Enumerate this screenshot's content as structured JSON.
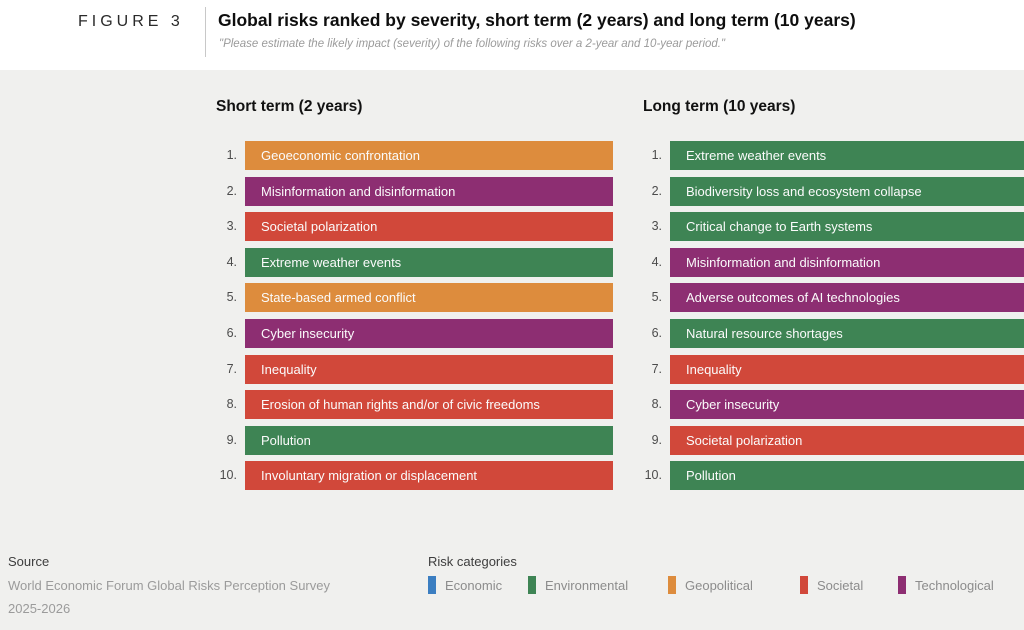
{
  "figure": {
    "label": "FIGURE 3",
    "title": "Global risks ranked by severity, short term (2 years) and long term (10 years)",
    "subtitle": "\"Please estimate the likely impact (severity) of the following risks over a 2-year and 10-year period.\""
  },
  "colors": {
    "Economic": "#3b7ec1",
    "Environmental": "#3e8454",
    "Geopolitical": "#dd8c3d",
    "Societal": "#d1483a",
    "Technological": "#8d2e72"
  },
  "chart_data": {
    "type": "table",
    "description": "Two ranked top-10 lists of global risks by severity; bar color encodes risk category",
    "columns": [
      {
        "title": "Short term (2 years)",
        "items": [
          {
            "rank": "1.",
            "label": "Geoeconomic confrontation",
            "category": "Geopolitical"
          },
          {
            "rank": "2.",
            "label": "Misinformation and disinformation",
            "category": "Technological"
          },
          {
            "rank": "3.",
            "label": "Societal polarization",
            "category": "Societal"
          },
          {
            "rank": "4.",
            "label": "Extreme weather events",
            "category": "Environmental"
          },
          {
            "rank": "5.",
            "label": "State-based armed conflict",
            "category": "Geopolitical"
          },
          {
            "rank": "6.",
            "label": "Cyber insecurity",
            "category": "Technological"
          },
          {
            "rank": "7.",
            "label": "Inequality",
            "category": "Societal"
          },
          {
            "rank": "8.",
            "label": "Erosion of human rights and/or of civic freedoms",
            "category": "Societal"
          },
          {
            "rank": "9.",
            "label": "Pollution",
            "category": "Environmental"
          },
          {
            "rank": "10.",
            "label": "Involuntary migration or displacement",
            "category": "Societal"
          }
        ]
      },
      {
        "title": "Long term (10 years)",
        "items": [
          {
            "rank": "1.",
            "label": "Extreme weather events",
            "category": "Environmental"
          },
          {
            "rank": "2.",
            "label": "Biodiversity loss and ecosystem collapse",
            "category": "Environmental"
          },
          {
            "rank": "3.",
            "label": "Critical change to Earth systems",
            "category": "Environmental"
          },
          {
            "rank": "4.",
            "label": "Misinformation and disinformation",
            "category": "Technological"
          },
          {
            "rank": "5.",
            "label": "Adverse outcomes of AI technologies",
            "category": "Technological"
          },
          {
            "rank": "6.",
            "label": "Natural resource shortages",
            "category": "Environmental"
          },
          {
            "rank": "7.",
            "label": "Inequality",
            "category": "Societal"
          },
          {
            "rank": "8.",
            "label": "Cyber insecurity",
            "category": "Technological"
          },
          {
            "rank": "9.",
            "label": "Societal polarization",
            "category": "Societal"
          },
          {
            "rank": "10.",
            "label": "Pollution",
            "category": "Environmental"
          }
        ]
      }
    ],
    "legend_position": "bottom"
  },
  "footer": {
    "source_heading": "Source",
    "source_line1": "World Economic Forum Global Risks Perception Survey",
    "source_line2": "2025-2026",
    "legend_heading": "Risk categories",
    "legend": [
      {
        "label": "Economic"
      },
      {
        "label": "Environmental"
      },
      {
        "label": "Geopolitical"
      },
      {
        "label": "Societal"
      },
      {
        "label": "Technological"
      }
    ]
  }
}
